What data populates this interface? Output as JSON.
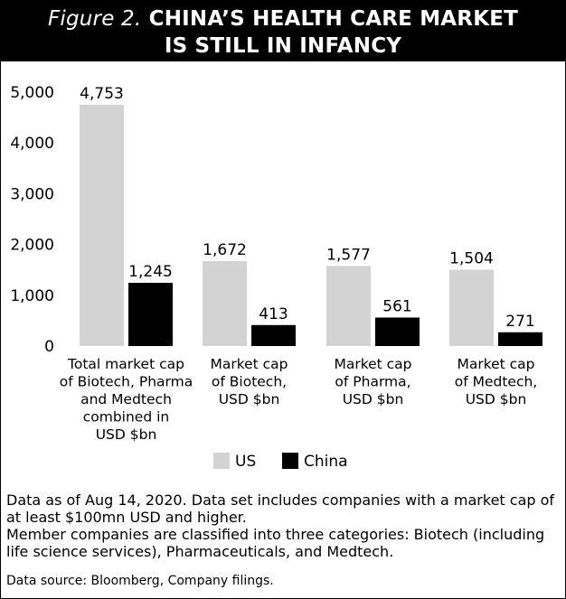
{
  "header": {
    "figure_label": "Figure 2.",
    "title_line1": "CHINA’S HEALTH CARE MARKET",
    "title_line2": "IS STILL IN INFANCY"
  },
  "chart_data": {
    "type": "bar",
    "title": "Figure 2. CHINA’S HEALTH CARE MARKET IS STILL IN INFANCY",
    "categories": [
      [
        "Total market cap",
        "of Biotech, Pharma",
        "and Medtech",
        "combined in",
        "USD $bn"
      ],
      [
        "Market cap",
        "of Biotech,",
        "USD $bn"
      ],
      [
        "Market cap",
        "of Pharma,",
        "USD $bn"
      ],
      [
        "Market cap",
        "of Medtech,",
        "USD $bn"
      ]
    ],
    "series": [
      {
        "name": "US",
        "color": "#d3d3d3",
        "values": [
          4753,
          1672,
          1577,
          1504
        ]
      },
      {
        "name": "China",
        "color": "#000000",
        "values": [
          1245,
          413,
          561,
          271
        ]
      }
    ],
    "value_labels": [
      [
        "4,753",
        "1,672",
        "1,577",
        "1,504"
      ],
      [
        "1,245",
        "413",
        "561",
        "271"
      ]
    ],
    "ylim": [
      0,
      5000
    ],
    "yticks": [
      0,
      1000,
      2000,
      3000,
      4000,
      5000
    ],
    "ytick_labels": [
      "0",
      "1,000",
      "2,000",
      "3,000",
      "4,000",
      "5,000"
    ],
    "xlabel": "",
    "ylabel": "",
    "grid": false,
    "legend_position": "bottom-center"
  },
  "notes": {
    "line1": "Data as of Aug 14, 2020. Data set includes companies with a market cap of at least $100mn USD and higher.",
    "line2": "Member companies are classified into three categories: Biotech (including life science services), Pharmaceuticals, and Medtech.",
    "source": "Data source: Bloomberg, Company filings."
  }
}
